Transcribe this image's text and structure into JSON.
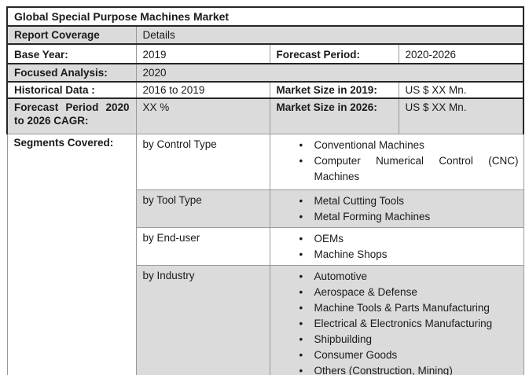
{
  "title": "Global Special Purpose Machines Market",
  "colors": {
    "row_shade": "#dbdbdb",
    "border_heavy": "#262626",
    "border_light": "#999999",
    "text": "#1a1a1a"
  },
  "info": {
    "report_coverage_label": "Report Coverage",
    "report_coverage_value": "Details",
    "base_year_label": "Base Year:",
    "base_year_value": "2019",
    "forecast_period_label": "Forecast Period:",
    "forecast_period_value": "2020-2026",
    "focused_analysis_label": "Focused Analysis:",
    "focused_analysis_value": "2020",
    "historical_data_label": "Historical Data :",
    "historical_data_value": "2016 to 2019",
    "market_size_2019_label": "Market Size in 2019:",
    "market_size_2019_value": "US $ XX Mn.",
    "forecast_cagr_label": "Forecast Period 2020 to 2026 CAGR:",
    "forecast_cagr_value": "XX %",
    "market_size_2026_label": "Market Size in 2026:",
    "market_size_2026_value": "US $ XX Mn.",
    "segments_covered_label": "Segments Covered:"
  },
  "segments": [
    {
      "group": "by Control Type",
      "items": [
        "Conventional Machines",
        "Computer Numerical Control (CNC) Machines"
      ]
    },
    {
      "group": "by Tool Type",
      "items": [
        "Metal Cutting Tools",
        "Metal Forming Machines"
      ]
    },
    {
      "group": "by End-user",
      "items": [
        "OEMs",
        "Machine Shops"
      ]
    },
    {
      "group": "by Industry",
      "items": [
        "Automotive",
        "Aerospace & Defense",
        "Machine Tools & Parts Manufacturing",
        "Electrical & Electronics Manufacturing",
        "Shipbuilding",
        "Consumer Goods",
        "Others (Construction, Mining)"
      ]
    }
  ]
}
